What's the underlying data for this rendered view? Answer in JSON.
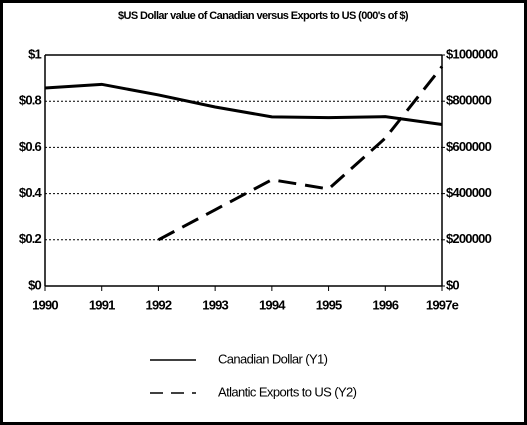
{
  "chart_data": {
    "type": "line",
    "title": "$US Dollar value of Canadian versus Exports to US (000's of $)",
    "categories": [
      "1990",
      "1991",
      "1992",
      "1993",
      "1994",
      "1995",
      "1996",
      "1997e"
    ],
    "series": [
      {
        "name": "Canadian Dollar (Y1)",
        "color": "#000000",
        "dash": "solid",
        "values": [
          0.857,
          0.873,
          0.827,
          0.775,
          0.732,
          0.729,
          0.733,
          0.699
        ]
      },
      {
        "name": "Atlantic Exports to US (Y2)",
        "color": "#000000",
        "dash": "dashed",
        "axis": "y2",
        "values": [
          null,
          null,
          200000,
          330000,
          460000,
          420000,
          640000,
          950000
        ]
      }
    ],
    "ylim": [
      0,
      1
    ],
    "yticks": [
      {
        "value": 0,
        "label": "$0"
      },
      {
        "value": 0.2,
        "label": "$0.2"
      },
      {
        "value": 0.4,
        "label": "$0.4"
      },
      {
        "value": 0.6,
        "label": "$0.6"
      },
      {
        "value": 0.8,
        "label": "$0.8"
      },
      {
        "value": 1,
        "label": "$1"
      }
    ],
    "y2lim": [
      0,
      1000000
    ],
    "y2ticks": [
      {
        "value": 0,
        "label": "$0"
      },
      {
        "value": 200000,
        "label": "$200000"
      },
      {
        "value": 400000,
        "label": "$400000"
      },
      {
        "value": 600000,
        "label": "$600000"
      },
      {
        "value": 800000,
        "label": "$800000"
      },
      {
        "value": 1000000,
        "label": "$1000000"
      }
    ],
    "grid": true,
    "legend": "bottom"
  }
}
